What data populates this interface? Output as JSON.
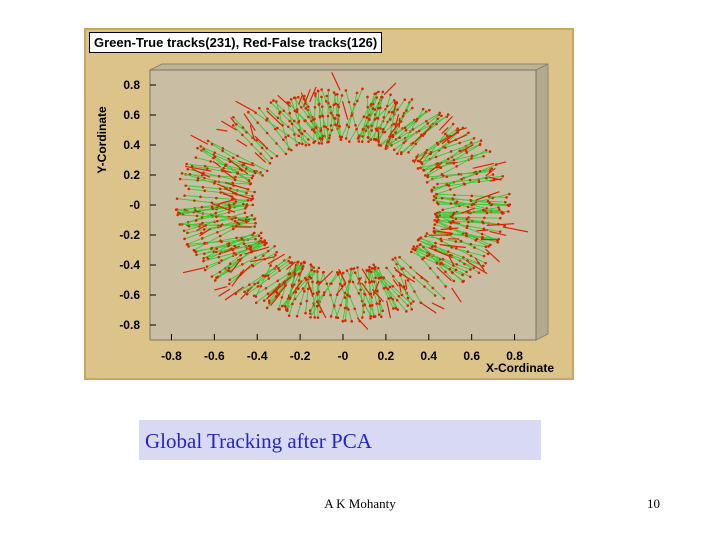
{
  "chart_data": {
    "type": "scatter",
    "title": "Green-True tracks(231), Red-False tracks(126)",
    "xlabel": "X-Cordinate",
    "ylabel": "Y-Cordinate",
    "xlim": [
      -0.9,
      0.9
    ],
    "ylim": [
      -0.9,
      0.9
    ],
    "x_ticks": [
      -0.8,
      -0.6,
      -0.4,
      -0.2,
      0,
      0.2,
      0.4,
      0.6,
      0.8
    ],
    "x_tick_labels": [
      "-0.8",
      "-0.6",
      "-0.4",
      "-0.2",
      "-0",
      "0.2",
      "0.4",
      "0.6",
      "0.8"
    ],
    "y_ticks": [
      0.8,
      0.6,
      0.4,
      0.2,
      0,
      -0.2,
      -0.4,
      -0.6,
      -0.8
    ],
    "y_tick_labels": [
      "0.8",
      "0.6",
      "0.4",
      "0.2",
      "-0",
      "-0.2",
      "-0.4",
      "-0.6",
      "-0.8"
    ],
    "grid": false,
    "series": [
      {
        "name": "Green-True tracks",
        "count": 231,
        "color": "#33cc33",
        "description_ring": {
          "inner_radius": 0.42,
          "outer_radius": 0.78,
          "center": [
            0,
            0
          ]
        }
      },
      {
        "name": "Red-False tracks",
        "count": 126,
        "color": "#dd2200"
      }
    ]
  },
  "caption": "Global Tracking after PCA",
  "footer": {
    "author": "A K Mohanty",
    "page": "10"
  },
  "colors": {
    "frame": "#dcc38a",
    "plot_bg": "#c9bea4",
    "caption_bg": "#d7daf2",
    "caption_text": "#2424c8"
  }
}
